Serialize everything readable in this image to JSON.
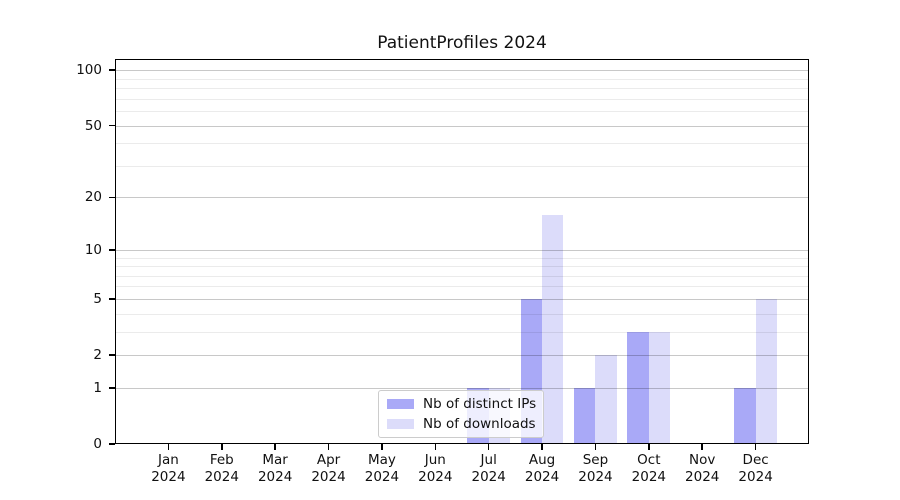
{
  "chart_data": {
    "type": "bar",
    "title": "PatientProfiles 2024",
    "categories": [
      "Jan",
      "Feb",
      "Mar",
      "Apr",
      "May",
      "Jun",
      "Jul",
      "Aug",
      "Sep",
      "Oct",
      "Nov",
      "Dec"
    ],
    "x_tick_second_line": "2024",
    "series": [
      {
        "name": "Nb of distinct IPs",
        "color": "#a9a9f7",
        "values": [
          0,
          0,
          0,
          0,
          0,
          0,
          1,
          5,
          1,
          3,
          0,
          1
        ]
      },
      {
        "name": "Nb of downloads",
        "color": "#dcdcfa",
        "values": [
          0,
          0,
          0,
          0,
          0,
          0,
          1,
          16,
          2,
          3,
          0,
          5
        ]
      }
    ],
    "yscale": "log1p",
    "ylim": [
      0,
      115
    ],
    "y_major_ticks": [
      0,
      1,
      2,
      5,
      10,
      20,
      50,
      100
    ],
    "y_minor_ticks": [
      3,
      4,
      6,
      7,
      8,
      9,
      30,
      40,
      60,
      70,
      80,
      90
    ],
    "grid": "on",
    "legend_position": "lower-center",
    "xlabel": "",
    "ylabel": ""
  }
}
